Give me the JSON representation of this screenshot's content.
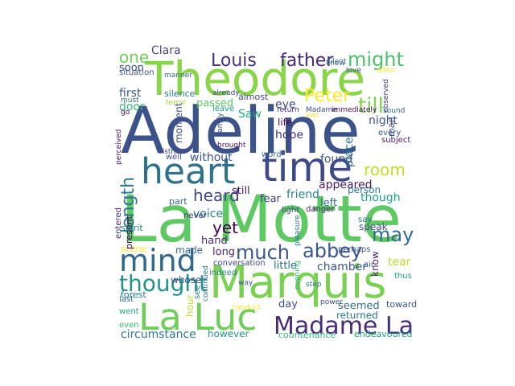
{
  "words": [
    {
      "text": "Adeline",
      "color": "#3b528b"
    },
    {
      "text": "La Motte",
      "color": "#5ec962"
    },
    {
      "text": "Marquis",
      "color": "#7ad151"
    },
    {
      "text": "Theodore",
      "color": "#89d548"
    },
    {
      "text": "time",
      "color": "#3e4989"
    },
    {
      "text": "heart",
      "color": "#2c728e"
    },
    {
      "text": "La Luc",
      "color": "#6ece58"
    },
    {
      "text": "Madame La",
      "color": "#472c7a"
    },
    {
      "text": "mind",
      "color": "#31688e"
    },
    {
      "text": "thought",
      "color": "#21918c"
    },
    {
      "text": "father",
      "color": "#482878"
    },
    {
      "text": "might",
      "color": "#4ac16d"
    },
    {
      "text": "Louis",
      "color": "#46337f"
    },
    {
      "text": "Peter",
      "color": "#fde725"
    },
    {
      "text": "till",
      "color": "#7fd34e"
    },
    {
      "text": "length",
      "color": "#2a788e"
    },
    {
      "text": "much",
      "color": "#38598c"
    },
    {
      "text": "abbey",
      "color": "#39568c"
    },
    {
      "text": "room",
      "color": "#bddf26"
    },
    {
      "text": "may",
      "color": "#2d708e"
    },
    {
      "text": "heard",
      "color": "#3f4788"
    },
    {
      "text": "yet",
      "color": "#440154"
    },
    {
      "text": "one",
      "color": "#6ece58"
    },
    {
      "text": "appeared",
      "color": "#481a6c"
    },
    {
      "text": "Clara",
      "color": "#414487"
    },
    {
      "text": "night",
      "color": "#3b528b"
    },
    {
      "text": "friend",
      "color": "#26828e"
    },
    {
      "text": "place",
      "color": "#2a788e"
    },
    {
      "text": "hope",
      "color": "#46327e"
    },
    {
      "text": "found",
      "color": "#3b528b"
    },
    {
      "text": "though",
      "color": "#1fa088"
    },
    {
      "text": "eye",
      "color": "#3e4a89"
    },
    {
      "text": "Saw",
      "color": "#22a884"
    },
    {
      "text": "passed",
      "color": "#5ec962"
    },
    {
      "text": "first",
      "color": "#375b8d"
    },
    {
      "text": "door",
      "color": "#35b779"
    },
    {
      "text": "soon",
      "color": "#3d4e8a"
    },
    {
      "text": "voice",
      "color": "#26828e"
    },
    {
      "text": "without",
      "color": "#3b528b"
    },
    {
      "text": "still",
      "color": "#481467"
    },
    {
      "text": "life",
      "color": "#440154"
    },
    {
      "text": "fear",
      "color": "#443983"
    },
    {
      "text": "left",
      "color": "#2c728e"
    },
    {
      "text": "hand",
      "color": "#482677"
    },
    {
      "text": "long",
      "color": "#482173"
    },
    {
      "text": "made",
      "color": "#31688e"
    },
    {
      "text": "little",
      "color": "#2d708e"
    },
    {
      "text": "chamber",
      "color": "#3b528b"
    },
    {
      "text": "tear",
      "color": "#b5de2b"
    },
    {
      "text": "speak",
      "color": "#3e4989"
    },
    {
      "text": "know",
      "color": "#481b6d"
    },
    {
      "text": "moment",
      "color": "#3f4788"
    },
    {
      "text": "whose",
      "color": "#3e4c8a"
    },
    {
      "text": "forest",
      "color": "#2a788e"
    },
    {
      "text": "day",
      "color": "#3e4a89"
    },
    {
      "text": "seemed",
      "color": "#31688e"
    },
    {
      "text": "circumstance",
      "color": "#2a788e"
    },
    {
      "text": "however",
      "color": "#1f968b"
    },
    {
      "text": "countenance",
      "color": "#35b779"
    },
    {
      "text": "endeavoured",
      "color": "#20a486"
    },
    {
      "text": "returned",
      "color": "#2c728e"
    },
    {
      "text": "hour",
      "color": "#b8de29"
    },
    {
      "text": "almost",
      "color": "#414487"
    },
    {
      "text": "silence",
      "color": "#2a788e"
    },
    {
      "text": "terror",
      "color": "#9fda3a"
    },
    {
      "text": "already",
      "color": "#3f4788"
    },
    {
      "text": "Madame",
      "color": "#3e4a89"
    },
    {
      "text": "immediately",
      "color": "#46085c"
    },
    {
      "text": "lost",
      "color": "#fde725"
    },
    {
      "text": "sound",
      "color": "#31688e"
    },
    {
      "text": "man",
      "color": "#3e4c8a"
    },
    {
      "text": "every",
      "color": "#38588c"
    },
    {
      "text": "person",
      "color": "#2a788e"
    },
    {
      "text": "danger",
      "color": "#482475"
    },
    {
      "text": "light",
      "color": "#3f4889"
    },
    {
      "text": "perhaps",
      "color": "#3b528b"
    },
    {
      "text": "say",
      "color": "#2d708e"
    },
    {
      "text": "thus",
      "color": "#1f9e89"
    },
    {
      "text": "scene",
      "color": "#fde725"
    },
    {
      "text": "conversation",
      "color": "#3e4a89"
    },
    {
      "text": "indeed",
      "color": "#26828e"
    },
    {
      "text": "way",
      "color": "#38588c"
    },
    {
      "text": "air",
      "color": "#3b528b"
    },
    {
      "text": "last",
      "color": "#2c728e"
    },
    {
      "text": "went",
      "color": "#22a884"
    },
    {
      "text": "even",
      "color": "#35b779"
    },
    {
      "text": "step",
      "color": "#2a788e"
    },
    {
      "text": "toward",
      "color": "#3b528b"
    },
    {
      "text": "conduct",
      "color": "#fde725"
    },
    {
      "text": "see",
      "color": "#26828e"
    },
    {
      "text": "present",
      "color": "#440154"
    },
    {
      "text": "entered",
      "color": "#482878"
    },
    {
      "text": "part",
      "color": "#31688e"
    },
    {
      "text": "well",
      "color": "#3b528b"
    },
    {
      "text": "distress",
      "color": "#3e4989"
    },
    {
      "text": "subject",
      "color": "#481d6f"
    },
    {
      "text": "word",
      "color": "#2d708e"
    },
    {
      "text": "brought",
      "color": "#471063"
    },
    {
      "text": "leave",
      "color": "#1f998a"
    },
    {
      "text": "return",
      "color": "#482576"
    },
    {
      "text": "knew",
      "color": "#3e4a89"
    },
    {
      "text": "silent",
      "color": "#2a788e"
    },
    {
      "text": "love",
      "color": "#3b528b"
    },
    {
      "text": "often",
      "color": "#fde725"
    },
    {
      "text": "observed",
      "color": "#414487"
    },
    {
      "text": "situation",
      "color": "#3b528b"
    },
    {
      "text": "manner",
      "color": "#31688e"
    },
    {
      "text": "must",
      "color": "#2c728e"
    },
    {
      "text": "go",
      "color": "#440154"
    },
    {
      "text": "perceived",
      "color": "#481467"
    },
    {
      "text": "family",
      "color": "#3e4989"
    },
    {
      "text": "continued",
      "color": "#2a788e"
    },
    {
      "text": "evening",
      "color": "#35b779"
    },
    {
      "text": "power",
      "color": "#3b528b"
    },
    {
      "text": "pleasure",
      "color": "#2d708e"
    },
    {
      "text": "spirit",
      "color": "#26828e"
    },
    {
      "text": "never",
      "color": "#46327e"
    }
  ]
}
